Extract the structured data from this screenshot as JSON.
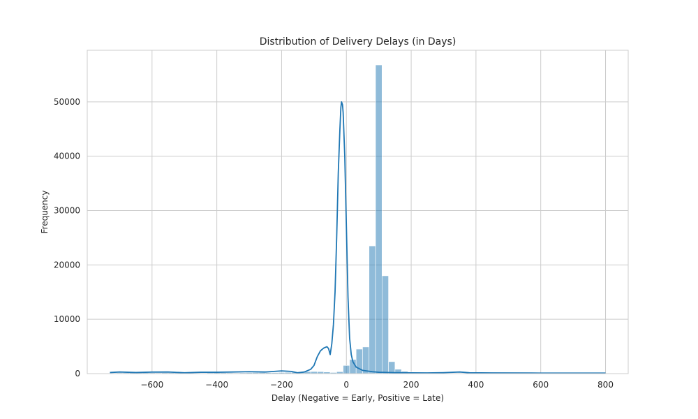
{
  "chart_data": {
    "type": "bar",
    "title": "Distribution of Delivery Delays (in Days)",
    "xlabel": "Delay (Negative = Early, Positive = Late)",
    "ylabel": "Frequency",
    "xlim": [
      -800,
      870
    ],
    "ylim": [
      0,
      59500
    ],
    "xticks": [
      -600,
      -400,
      -200,
      0,
      200,
      400,
      600,
      800
    ],
    "yticks": [
      0,
      10000,
      20000,
      30000,
      40000,
      50000
    ],
    "grid": true,
    "bins": {
      "start": -730,
      "width": 20,
      "counts": [
        120,
        140,
        150,
        180,
        190,
        170,
        150,
        130,
        160,
        170,
        180,
        170,
        150,
        120,
        100,
        150,
        170,
        160,
        140,
        120,
        150,
        180,
        200,
        200,
        190,
        180,
        200,
        230,
        260,
        320,
        360,
        380,
        360,
        300,
        200,
        350,
        1500,
        2600,
        4500,
        4900,
        23500,
        56800,
        18000,
        2200,
        800,
        420,
        280,
        220,
        180,
        150,
        130,
        120,
        110,
        100,
        100,
        95,
        90,
        85,
        80,
        80,
        75,
        75,
        70,
        70,
        65,
        65,
        60,
        60,
        55,
        55,
        55,
        50,
        50,
        50,
        45,
        45
      ]
    },
    "kde": {
      "x": [
        -730,
        -700,
        -650,
        -600,
        -550,
        -500,
        -450,
        -400,
        -350,
        -300,
        -250,
        -200,
        -170,
        -150,
        -130,
        -110,
        -100,
        -95,
        -90,
        -80,
        -70,
        -60,
        -55,
        -50,
        -45,
        -40,
        -35,
        -30,
        -25,
        -20,
        -17,
        -15,
        -12,
        -10,
        -5,
        0,
        5,
        10,
        15,
        20,
        30,
        50,
        80,
        100,
        150,
        200,
        250,
        300,
        350,
        380,
        450,
        600,
        700,
        800
      ],
      "y": [
        200,
        300,
        200,
        280,
        300,
        150,
        250,
        250,
        300,
        350,
        300,
        500,
        400,
        150,
        300,
        800,
        1500,
        2300,
        3100,
        4200,
        4700,
        4950,
        4600,
        3500,
        5500,
        9000,
        15000,
        25000,
        37000,
        45000,
        49000,
        50000,
        49500,
        48000,
        40000,
        27000,
        14000,
        6500,
        3500,
        2200,
        1200,
        600,
        350,
        250,
        180,
        140,
        120,
        180,
        300,
        150,
        120,
        100,
        100,
        90
      ]
    },
    "bar_color": "#1f77b4",
    "bar_opacity": 0.5,
    "line_color": "#1f77b4",
    "grid_color": "#cccccc"
  }
}
